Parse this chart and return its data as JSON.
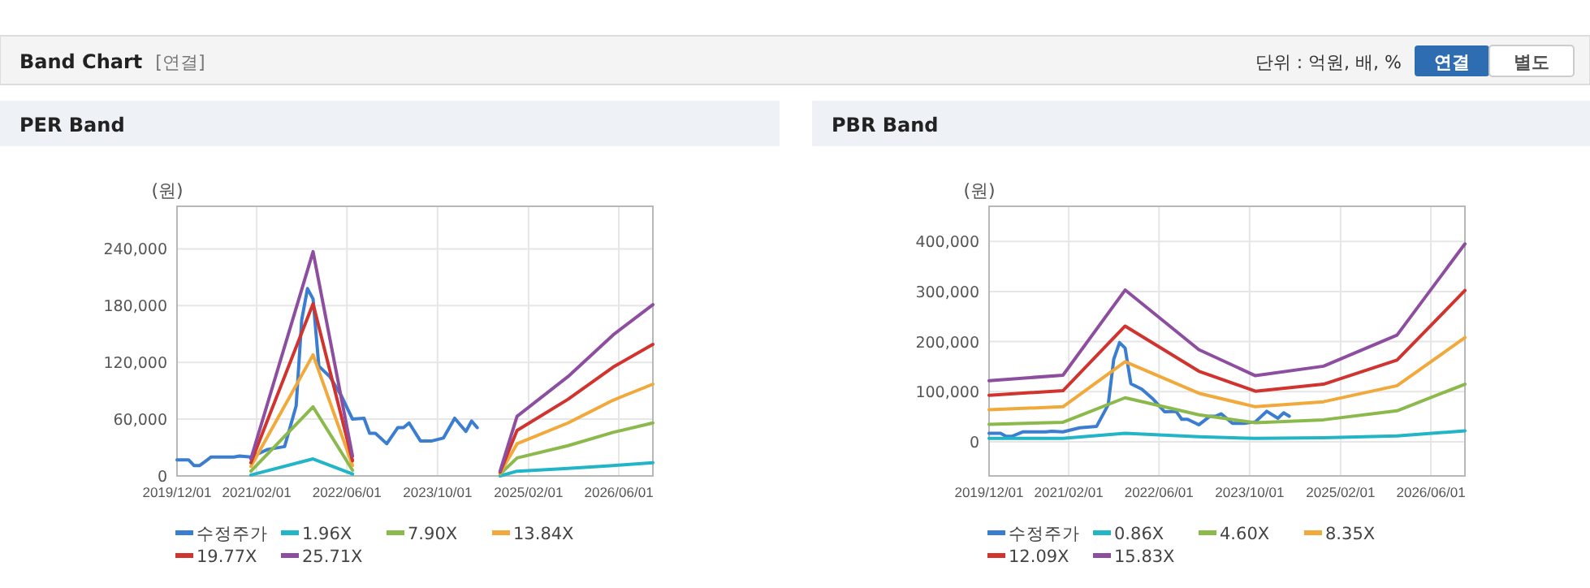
{
  "chart_data": [
    {
      "type": "other",
      "title": "Band Chart",
      "annotations": [
        "[연결]",
        "단위 : 억원, 배, %",
        "연결",
        "별도"
      ]
    },
    {
      "type": "line",
      "title": "PER Band",
      "ylabel": "(원)",
      "xlim": [
        "2019-12-01",
        "2026-12-01"
      ],
      "ylim": [
        0,
        285000
      ],
      "xticks": [
        {
          "value": "2019-12-01",
          "label": "2019/12/01"
        },
        {
          "value": "2021-02-01",
          "label": "2021/02/01"
        },
        {
          "value": "2022-06-01",
          "label": "2022/06/01"
        },
        {
          "value": "2023-10-01",
          "label": "2023/10/01"
        },
        {
          "value": "2025-02-01",
          "label": "2025/02/01"
        },
        {
          "value": "2026-06-01",
          "label": "2026/06/01"
        }
      ],
      "yticks": [
        0,
        {
          "value": 60000,
          "label": "60,000"
        },
        {
          "value": 120000,
          "label": "120,000"
        },
        {
          "value": 180000,
          "label": "180,000"
        },
        {
          "value": 240000,
          "label": "240,000"
        }
      ],
      "grid": true,
      "legend": "bottom",
      "series": [
        {
          "name": "수정주가",
          "color": "#3b7dd0",
          "x": [
            "2019-12",
            "2020-02",
            "2020-03",
            "2020-04",
            "2020-06",
            "2020-10",
            "2020-11",
            "2021-01",
            "2021-04",
            "2021-07",
            "2021-09",
            "2021-10",
            "2021-11",
            "2021-12",
            "2022-01",
            "2022-03",
            "2022-05",
            "2022-07",
            "2022-09",
            "2022-10",
            "2022-11",
            "2023-01",
            "2023-03",
            "2023-04",
            "2023-05",
            "2023-07",
            "2023-09",
            "2023-11",
            "2024-01",
            "2024-03",
            "2024-04",
            "2024-05"
          ],
          "values": [
            17000,
            17000,
            11000,
            11000,
            20000,
            20000,
            21000,
            20000,
            28000,
            31000,
            74000,
            165000,
            198000,
            187000,
            116000,
            105000,
            85000,
            60000,
            61000,
            45000,
            45000,
            34000,
            51000,
            51000,
            56000,
            37000,
            37000,
            40000,
            61000,
            47000,
            58000,
            51000
          ]
        },
        {
          "name": "1.96X",
          "color": "#22b5c8",
          "x": [
            "2021-01",
            "2021-12",
            "2022-07",
            "2023-06",
            "2024-09",
            "2024-12",
            "2025-09",
            "2026-05",
            "2026-12"
          ],
          "values": [
            1000,
            18000,
            2000,
            null,
            0,
            5000,
            8000,
            11000,
            14000
          ]
        },
        {
          "name": "7.90X",
          "color": "#8cb94c",
          "x": [
            "2021-01",
            "2021-12",
            "2022-07",
            "2023-06",
            "2024-09",
            "2024-12",
            "2025-09",
            "2026-05",
            "2026-12"
          ],
          "values": [
            5000,
            73000,
            6000,
            null,
            2000,
            19000,
            32000,
            46000,
            56000
          ]
        },
        {
          "name": "13.84X",
          "color": "#f2a93b",
          "x": [
            "2021-01",
            "2021-12",
            "2022-07",
            "2023-06",
            "2024-09",
            "2024-12",
            "2025-09",
            "2026-05",
            "2026-12"
          ],
          "values": [
            10000,
            128000,
            11000,
            null,
            3000,
            34000,
            56000,
            80000,
            97000
          ]
        },
        {
          "name": "19.77X",
          "color": "#d1342f",
          "x": [
            "2021-01",
            "2021-12",
            "2022-07",
            "2023-06",
            "2024-09",
            "2024-12",
            "2025-09",
            "2026-05",
            "2026-12"
          ],
          "values": [
            14000,
            182000,
            16000,
            null,
            4000,
            48000,
            81000,
            115000,
            139000
          ]
        },
        {
          "name": "25.71X",
          "color": "#8d4e9f",
          "x": [
            "2021-01",
            "2021-12",
            "2022-07",
            "2023-06",
            "2024-09",
            "2024-12",
            "2025-09",
            "2026-05",
            "2026-12"
          ],
          "values": [
            18000,
            237000,
            21000,
            null,
            5000,
            63000,
            105000,
            149000,
            181000
          ]
        }
      ]
    },
    {
      "type": "line",
      "title": "PBR Band",
      "ylabel": "(원)",
      "xlim": [
        "2019-12-01",
        "2026-12-01"
      ],
      "ylim": [
        -68000,
        470000
      ],
      "xticks": [
        {
          "value": "2019-12-01",
          "label": "2019/12/01"
        },
        {
          "value": "2021-02-01",
          "label": "2021/02/01"
        },
        {
          "value": "2022-06-01",
          "label": "2022/06/01"
        },
        {
          "value": "2023-10-01",
          "label": "2023/10/01"
        },
        {
          "value": "2025-02-01",
          "label": "2025/02/01"
        },
        {
          "value": "2026-06-01",
          "label": "2026/06/01"
        }
      ],
      "yticks": [
        0,
        {
          "value": 100000,
          "label": "100,000"
        },
        {
          "value": 200000,
          "label": "200,000"
        },
        {
          "value": 300000,
          "label": "300,000"
        },
        {
          "value": 400000,
          "label": "400,000"
        }
      ],
      "grid": true,
      "legend": "bottom",
      "series": [
        {
          "name": "수정주가",
          "color": "#3b7dd0",
          "x": [
            "2019-12",
            "2020-02",
            "2020-03",
            "2020-04",
            "2020-06",
            "2020-10",
            "2020-11",
            "2021-01",
            "2021-04",
            "2021-07",
            "2021-09",
            "2021-10",
            "2021-11",
            "2021-12",
            "2022-01",
            "2022-03",
            "2022-05",
            "2022-07",
            "2022-09",
            "2022-10",
            "2022-11",
            "2023-01",
            "2023-03",
            "2023-04",
            "2023-05",
            "2023-07",
            "2023-09",
            "2023-11",
            "2024-01",
            "2024-03",
            "2024-04",
            "2024-05"
          ],
          "values": [
            17000,
            17000,
            11000,
            11000,
            20000,
            20000,
            21000,
            20000,
            28000,
            31000,
            74000,
            165000,
            198000,
            187000,
            116000,
            105000,
            85000,
            60000,
            61000,
            45000,
            45000,
            34000,
            51000,
            51000,
            56000,
            37000,
            37000,
            40000,
            61000,
            47000,
            58000,
            51000
          ]
        },
        {
          "name": "0.86X",
          "color": "#22b5c8",
          "x": [
            "2019-12",
            "2021-01",
            "2021-12",
            "2023-01",
            "2023-11",
            "2024-11",
            "2025-12",
            "2026-12"
          ],
          "values": [
            7000,
            7000,
            17000,
            10000,
            7000,
            8000,
            12000,
            22000
          ]
        },
        {
          "name": "4.60X",
          "color": "#8cb94c",
          "x": [
            "2019-12",
            "2021-01",
            "2021-12",
            "2023-01",
            "2023-11",
            "2024-11",
            "2025-12",
            "2026-12"
          ],
          "values": [
            35000,
            39000,
            88000,
            54000,
            38000,
            44000,
            62000,
            115000
          ]
        },
        {
          "name": "8.35X",
          "color": "#f2a93b",
          "x": [
            "2019-12",
            "2021-01",
            "2021-12",
            "2023-01",
            "2023-11",
            "2024-11",
            "2025-12",
            "2026-12"
          ],
          "values": [
            64000,
            70000,
            160000,
            97000,
            70000,
            80000,
            112000,
            208000
          ]
        },
        {
          "name": "12.09X",
          "color": "#d1342f",
          "x": [
            "2019-12",
            "2021-01",
            "2021-12",
            "2023-01",
            "2023-11",
            "2024-11",
            "2025-12",
            "2026-12"
          ],
          "values": [
            93000,
            102000,
            231000,
            141000,
            101000,
            115000,
            163000,
            302000
          ]
        },
        {
          "name": "15.83X",
          "color": "#8d4e9f",
          "x": [
            "2019-12",
            "2021-01",
            "2021-12",
            "2023-01",
            "2023-11",
            "2024-11",
            "2025-12",
            "2026-12"
          ],
          "values": [
            122000,
            133000,
            303000,
            184000,
            132000,
            151000,
            213000,
            395000
          ]
        }
      ]
    }
  ]
}
